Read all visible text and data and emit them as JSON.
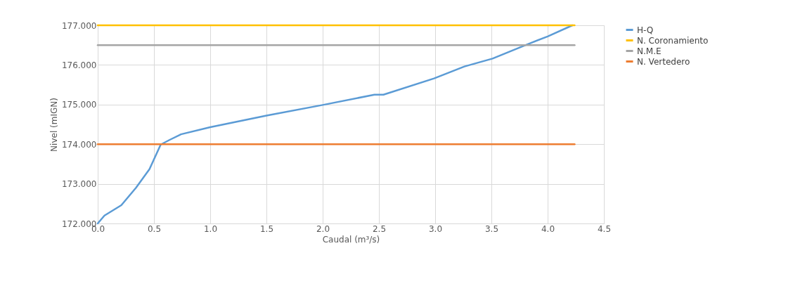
{
  "chart_data": {
    "type": "line",
    "xlabel": "Caudal (m³/s)",
    "ylabel": "Nivel (mIGN)",
    "xlim": [
      0,
      4.5
    ],
    "ylim": [
      172,
      177
    ],
    "xticks": [
      {
        "value": 0,
        "label": "0.0"
      },
      0.5,
      {
        "value": 1,
        "label": "1.0"
      },
      1.5,
      {
        "value": 2,
        "label": "2.0"
      },
      2.5,
      {
        "value": 3,
        "label": "3.0"
      },
      3.5,
      {
        "value": 4,
        "label": "4.0"
      },
      4.5
    ],
    "yticks": [
      {
        "value": 172,
        "label": "172.000"
      },
      {
        "value": 173,
        "label": "173.000"
      },
      {
        "value": 174,
        "label": "174.000"
      },
      {
        "value": 175,
        "label": "175.000"
      },
      {
        "value": 176,
        "label": "176.000"
      },
      {
        "value": 177,
        "label": "177.000"
      }
    ],
    "grid": true,
    "legend": "right",
    "marker": "none",
    "line_style": "solid",
    "series": [
      {
        "name": "H-Q",
        "color": "#5b9bd5",
        "x": [
          0,
          0.06,
          0.21,
          0.34,
          0.46,
          0.56,
          0.64,
          0.74,
          1.0,
          1.5,
          2.0,
          2.46,
          2.54,
          2.99,
          3.26,
          3.51,
          3.82,
          4.0,
          4.22
        ],
        "values": [
          172.0,
          172.2,
          172.46,
          172.9,
          173.37,
          173.99,
          174.11,
          174.25,
          174.43,
          174.72,
          174.99,
          175.25,
          175.25,
          175.66,
          175.96,
          176.16,
          176.52,
          176.72,
          177.0
        ]
      },
      {
        "name": "N. Coronamiento",
        "color": "#ffc000",
        "x": [
          0,
          4.24
        ],
        "values": [
          177,
          177
        ]
      },
      {
        "name": "N.M.E",
        "color": "#a5a5a5",
        "x": [
          0,
          4.24
        ],
        "values": [
          176.5,
          176.5
        ]
      },
      {
        "name": "N. Vertedero",
        "color": "#ed7d31",
        "x": [
          0,
          4.24
        ],
        "values": [
          174,
          174
        ]
      }
    ]
  }
}
